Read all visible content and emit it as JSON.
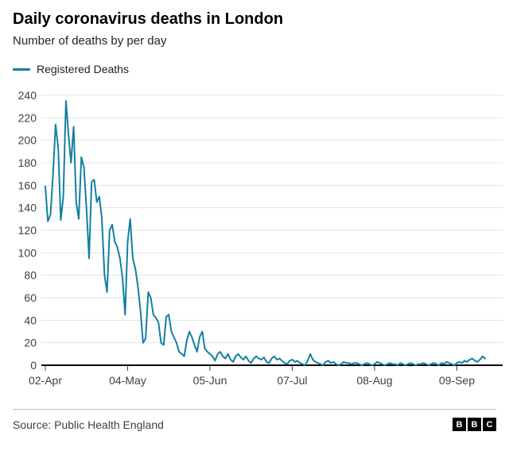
{
  "header": {
    "title": "Daily coronavirus deaths in London",
    "subtitle": "Number of deaths by per day"
  },
  "legend": {
    "label": "Registered Deaths",
    "color": "#1380A1"
  },
  "footer": {
    "source": "Source: Public Health England",
    "logo_letters": [
      "B",
      "B",
      "C"
    ]
  },
  "chart_data": {
    "type": "line",
    "title": "Daily coronavirus deaths in London",
    "subtitle": "Number of deaths by per day",
    "xlabel": "",
    "ylabel": "",
    "ylim": [
      0,
      240
    ],
    "y_tick_step": 20,
    "grid": "horizontal",
    "legend_position": "top-left",
    "x_start_label": "02-Apr",
    "x_cadence": "daily",
    "x_tick_labels": [
      "02-Apr",
      "04-May",
      "05-Jun",
      "07-Jul",
      "08-Aug",
      "09-Sep"
    ],
    "x_tick_indices": [
      0,
      32,
      64,
      96,
      128,
      160
    ],
    "series": [
      {
        "name": "Registered Deaths",
        "color": "#1380A1",
        "values": [
          159,
          128,
          134,
          170,
          214,
          193,
          129,
          150,
          235,
          205,
          180,
          212,
          145,
          130,
          185,
          176,
          140,
          95,
          163,
          165,
          145,
          150,
          130,
          80,
          65,
          120,
          125,
          110,
          105,
          95,
          78,
          45,
          110,
          130,
          95,
          86,
          70,
          48,
          20,
          24,
          65,
          60,
          45,
          42,
          38,
          20,
          18,
          43,
          45,
          30,
          25,
          20,
          12,
          10,
          8,
          22,
          30,
          25,
          18,
          12,
          25,
          30,
          15,
          12,
          10,
          8,
          4,
          10,
          12,
          8,
          6,
          10,
          5,
          3,
          8,
          10,
          7,
          5,
          8,
          4,
          2,
          6,
          8,
          6,
          5,
          7,
          3,
          2,
          6,
          8,
          5,
          6,
          4,
          2,
          1,
          4,
          5,
          3,
          4,
          2,
          1,
          0,
          4,
          10,
          5,
          3,
          2,
          1,
          0,
          3,
          4,
          2,
          3,
          1,
          0,
          1,
          3,
          2,
          2,
          1,
          2,
          2,
          1,
          0,
          1,
          2,
          1,
          0,
          1,
          3,
          2,
          1,
          0,
          1,
          2,
          1,
          1,
          0,
          2,
          1,
          0,
          1,
          2,
          1,
          0,
          1,
          1,
          2,
          1,
          0,
          1,
          2,
          1,
          0,
          2,
          1,
          3,
          2,
          1,
          0,
          2,
          3,
          2,
          4,
          3,
          5,
          6,
          4,
          3,
          5,
          8,
          6
        ]
      }
    ]
  }
}
